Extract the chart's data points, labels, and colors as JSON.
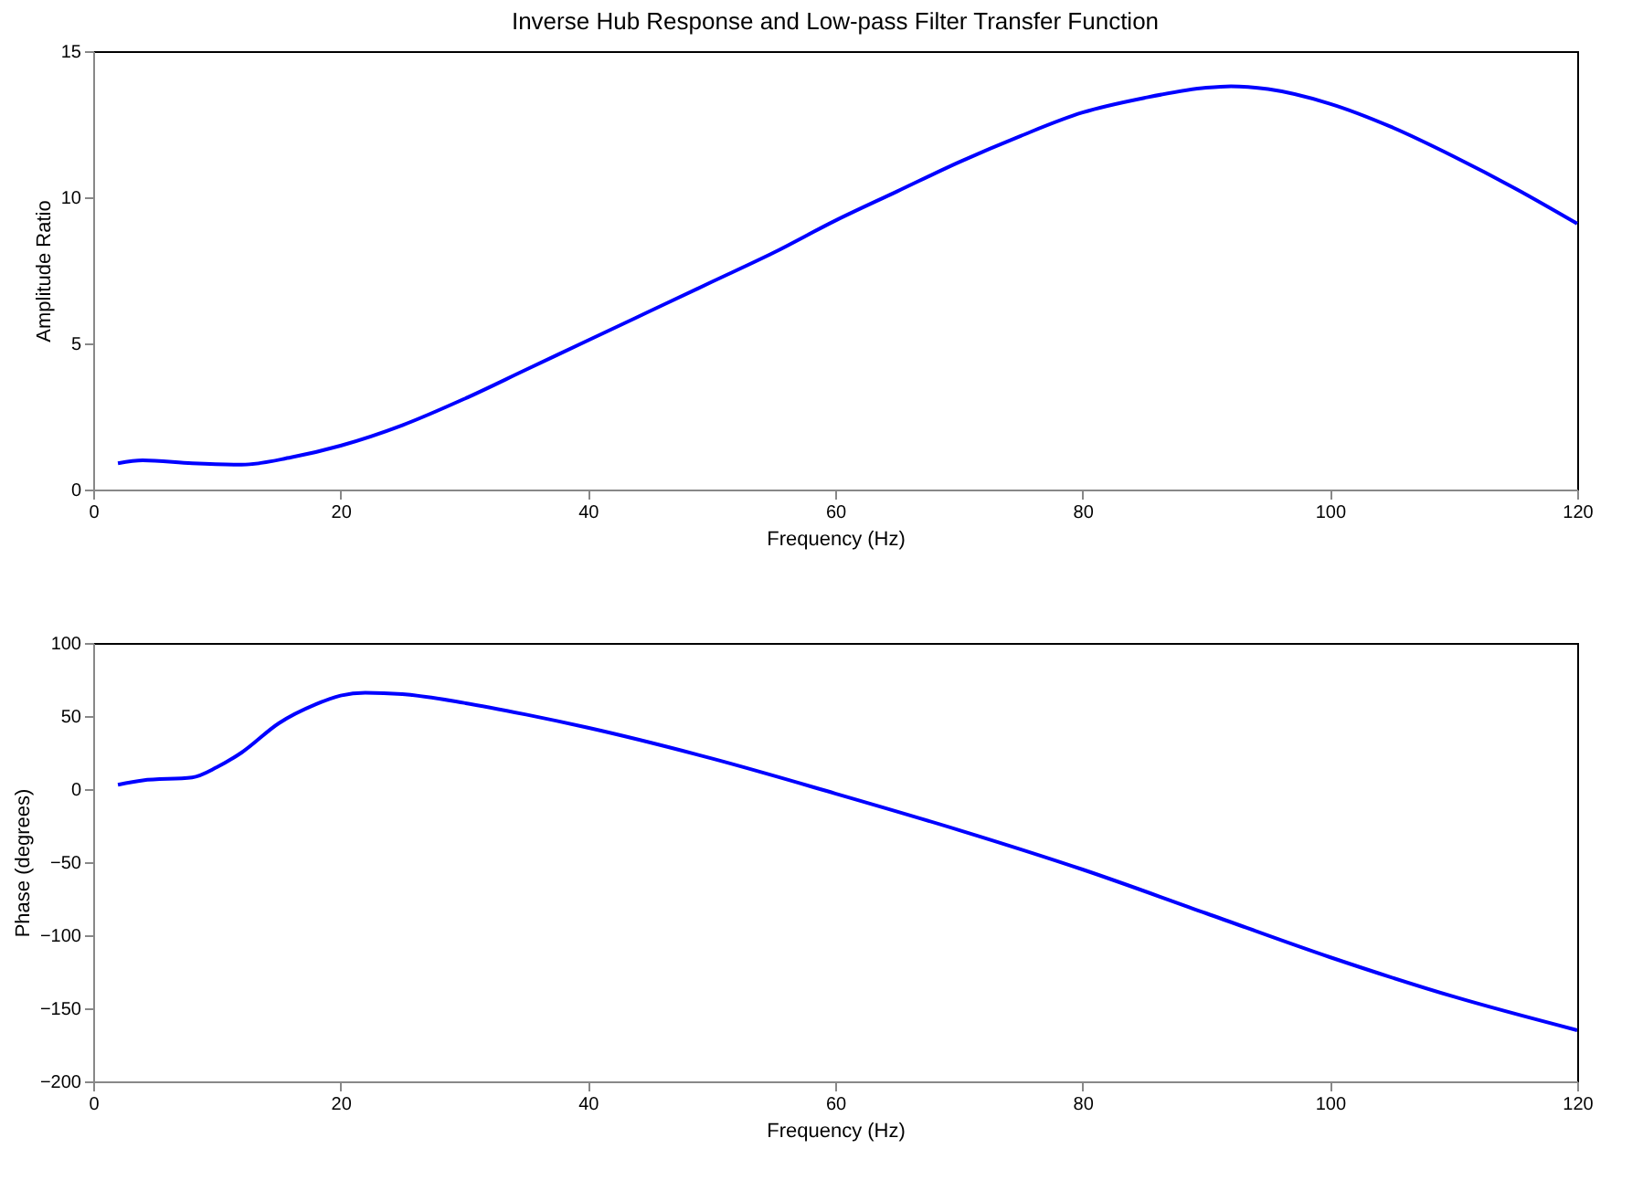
{
  "chart_data": [
    {
      "type": "line",
      "title": "Inverse Hub Response and Low-pass Filter Transfer Function",
      "xlabel": "Frequency (Hz)",
      "ylabel": "Amplitude Ratio",
      "xlim": [
        0,
        120
      ],
      "xticks": [
        0,
        20,
        40,
        60,
        80,
        100,
        120
      ],
      "ylim": [
        0,
        15
      ],
      "yticks": [
        0,
        5,
        10,
        15
      ],
      "grid": false,
      "x": [
        2,
        4,
        8,
        12,
        16,
        20,
        25,
        30,
        35,
        40,
        45,
        50,
        55,
        60,
        65,
        70,
        75,
        80,
        85,
        90,
        92,
        95,
        100,
        105,
        110,
        115,
        120
      ],
      "series": [
        {
          "color": "#0000ff",
          "values": [
            0.9,
            1.0,
            0.9,
            0.85,
            1.1,
            1.5,
            2.2,
            3.1,
            4.1,
            5.1,
            6.1,
            7.1,
            8.1,
            9.2,
            10.2,
            11.2,
            12.1,
            12.9,
            13.4,
            13.75,
            13.8,
            13.7,
            13.2,
            12.4,
            11.4,
            10.3,
            9.1
          ]
        }
      ]
    },
    {
      "type": "line",
      "xlabel": "Frequency (Hz)",
      "ylabel": "Phase (degrees)",
      "xlim": [
        0,
        120
      ],
      "xticks": [
        0,
        20,
        40,
        60,
        80,
        100,
        120
      ],
      "ylim": [
        -200,
        100
      ],
      "yticks": [
        -200,
        -150,
        -100,
        -50,
        0,
        50,
        100
      ],
      "grid": false,
      "x": [
        2,
        4,
        8,
        10,
        12,
        15,
        18,
        20,
        22,
        25,
        30,
        35,
        40,
        50,
        60,
        70,
        80,
        90,
        100,
        110,
        120
      ],
      "series": [
        {
          "color": "#0000ff",
          "values": [
            3,
            6,
            8,
            15,
            25,
            45,
            58,
            64,
            66,
            65,
            59,
            51,
            42,
            21,
            -3,
            -28,
            -55,
            -85,
            -115,
            -142,
            -165
          ]
        }
      ]
    }
  ]
}
